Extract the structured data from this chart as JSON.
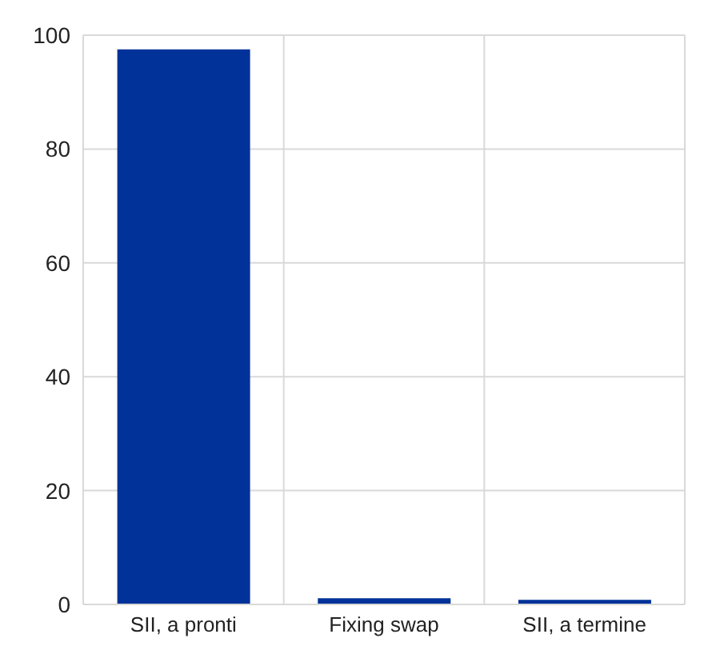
{
  "chart_data": {
    "type": "bar",
    "categories": [
      "SII, a pronti",
      "Fixing swap",
      "SII, a termine"
    ],
    "values": [
      97.5,
      1.1,
      0.8
    ],
    "color": "#003299",
    "ylim": [
      0,
      100
    ],
    "yticks": [
      0,
      20,
      40,
      60,
      80,
      100
    ],
    "grid": true
  }
}
